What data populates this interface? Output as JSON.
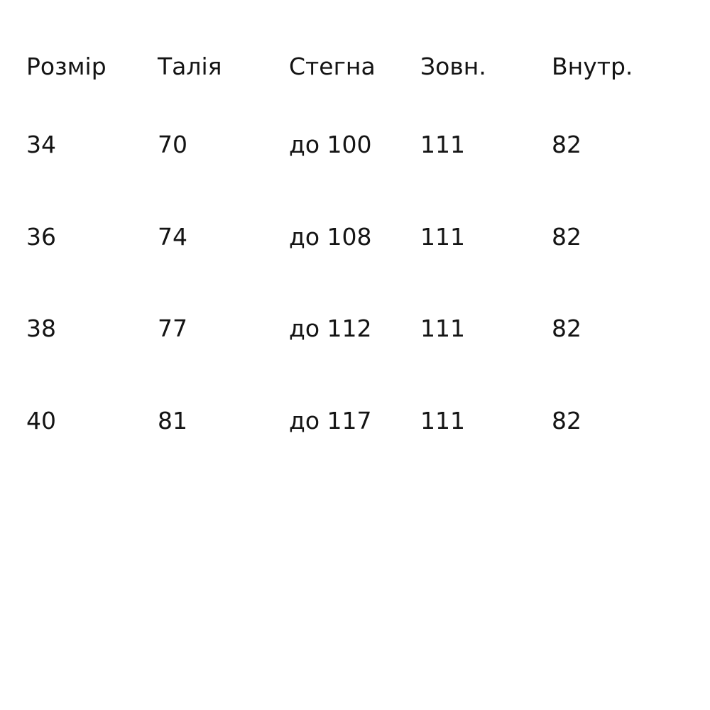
{
  "table": {
    "title": "size-chart",
    "columns": [
      "Розмір",
      "Талія",
      "Стегна",
      "Зовн.",
      "Внутр."
    ],
    "rows": [
      [
        "34",
        "70",
        "до 100",
        "111",
        "82"
      ],
      [
        "36",
        "74",
        "до 108",
        "111",
        "82"
      ],
      [
        "38",
        "77",
        "до 112",
        "111",
        "82"
      ],
      [
        "40",
        "81",
        "до 117",
        "111",
        "82"
      ]
    ]
  },
  "colors": {
    "background": "#ffffff",
    "text": "#141414"
  }
}
